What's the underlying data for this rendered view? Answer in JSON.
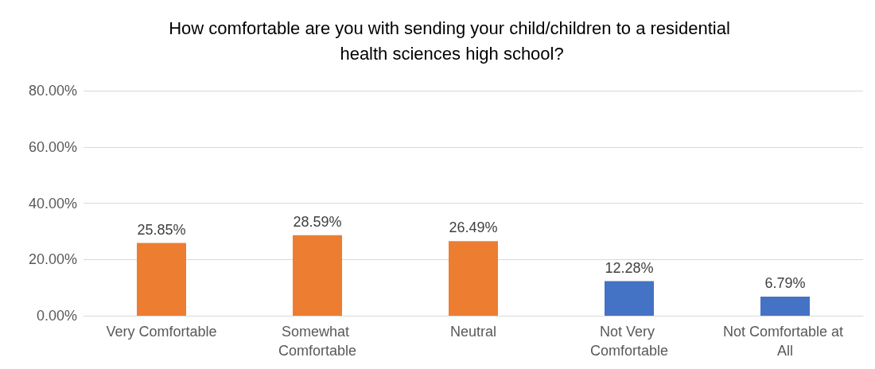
{
  "chart_data": {
    "type": "bar",
    "title": "How comfortable are you with sending your child/children to a residential health sciences high school?",
    "categories": [
      "Very Comfortable",
      "Somewhat Comfortable",
      "Neutral",
      "Not Very Comfortable",
      "Not Comfortable at All"
    ],
    "values": [
      25.85,
      28.59,
      26.49,
      12.28,
      6.79
    ],
    "colors": [
      "#ed7d31",
      "#ed7d31",
      "#ed7d31",
      "#4472c4",
      "#4472c4"
    ],
    "value_labels": [
      "25.85%",
      "28.59%",
      "26.49%",
      "12.28%",
      "6.79%"
    ],
    "ylim": [
      0,
      80
    ],
    "yticks": [
      {
        "value": 0,
        "label": "0.00%"
      },
      {
        "value": 20,
        "label": "20.00%"
      },
      {
        "value": 40,
        "label": "40.00%"
      },
      {
        "value": 60,
        "label": "60.00%"
      },
      {
        "value": 80,
        "label": "80.00%"
      }
    ],
    "grid": "y"
  }
}
